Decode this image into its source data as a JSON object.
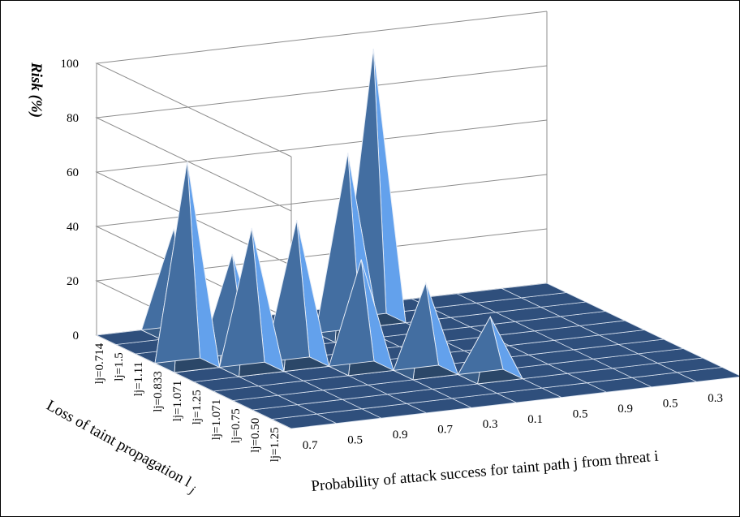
{
  "chart_data": {
    "type": "surface",
    "zlabel": "Risk (%)",
    "xlabel": "Probability of attack success for taint path j from threat i",
    "ylabel": "Loss of taint propagation l",
    "ylabel_subscript": "j",
    "zlim": [
      0,
      100
    ],
    "z_ticks": [
      "0",
      "20",
      "40",
      "60",
      "80",
      "100"
    ],
    "x_categories": [
      "0.7",
      "0.5",
      "0.9",
      "0.7",
      "0.3",
      "0.1",
      "0.5",
      "0.9",
      "0.5",
      "0.3"
    ],
    "y_categories": [
      "lj=1.25",
      "lj=0.50",
      "lj=0.75",
      "lj=1.071",
      "lj=1.25",
      "lj=1.071",
      "lj=0.833",
      "lj=1.11",
      "lj=1.5",
      "lj=0.714"
    ],
    "values": [
      [
        0,
        0,
        0,
        0,
        0,
        0,
        0,
        0,
        0,
        0
      ],
      [
        0,
        0,
        0,
        0,
        0,
        0,
        0,
        0,
        0,
        0
      ],
      [
        0,
        0,
        0,
        0,
        0,
        22,
        0,
        0,
        0,
        0
      ],
      [
        0,
        0,
        0,
        0,
        33,
        0,
        0,
        0,
        0,
        0
      ],
      [
        0,
        0,
        0,
        40,
        0,
        0,
        0,
        0,
        0,
        0
      ],
      [
        0,
        0,
        53,
        0,
        0,
        0,
        0,
        0,
        0,
        0
      ],
      [
        0,
        39,
        0,
        0,
        0,
        0,
        0,
        0,
        0,
        0
      ],
      [
        0,
        0,
        0,
        0,
        0,
        0,
        0,
        0,
        0,
        0
      ],
      [
        0,
        0,
        0,
        0,
        0,
        0,
        0,
        0,
        0,
        0
      ],
      [
        0,
        0,
        0,
        0,
        0,
        0,
        0,
        0,
        0,
        0
      ]
    ],
    "peaks": [
      {
        "y_category": "lj=0.833",
        "x_category": "0.7",
        "value": 75
      },
      {
        "y_category": "lj=1.071",
        "x_category": "0.5",
        "value": 52
      },
      {
        "y_category": "lj=1.11",
        "x_category": "0.3",
        "value": 67
      },
      {
        "y_category": "lj=1.5",
        "x_category": "0.1",
        "value": 100
      },
      {
        "y_category": "lj=1.071",
        "x_category": "0.9",
        "value": 42
      },
      {
        "y_category": "lj=0.714",
        "x_category": "0.5",
        "value": 38
      }
    ],
    "surface_color": "#4f81bd",
    "gridlines": true
  }
}
